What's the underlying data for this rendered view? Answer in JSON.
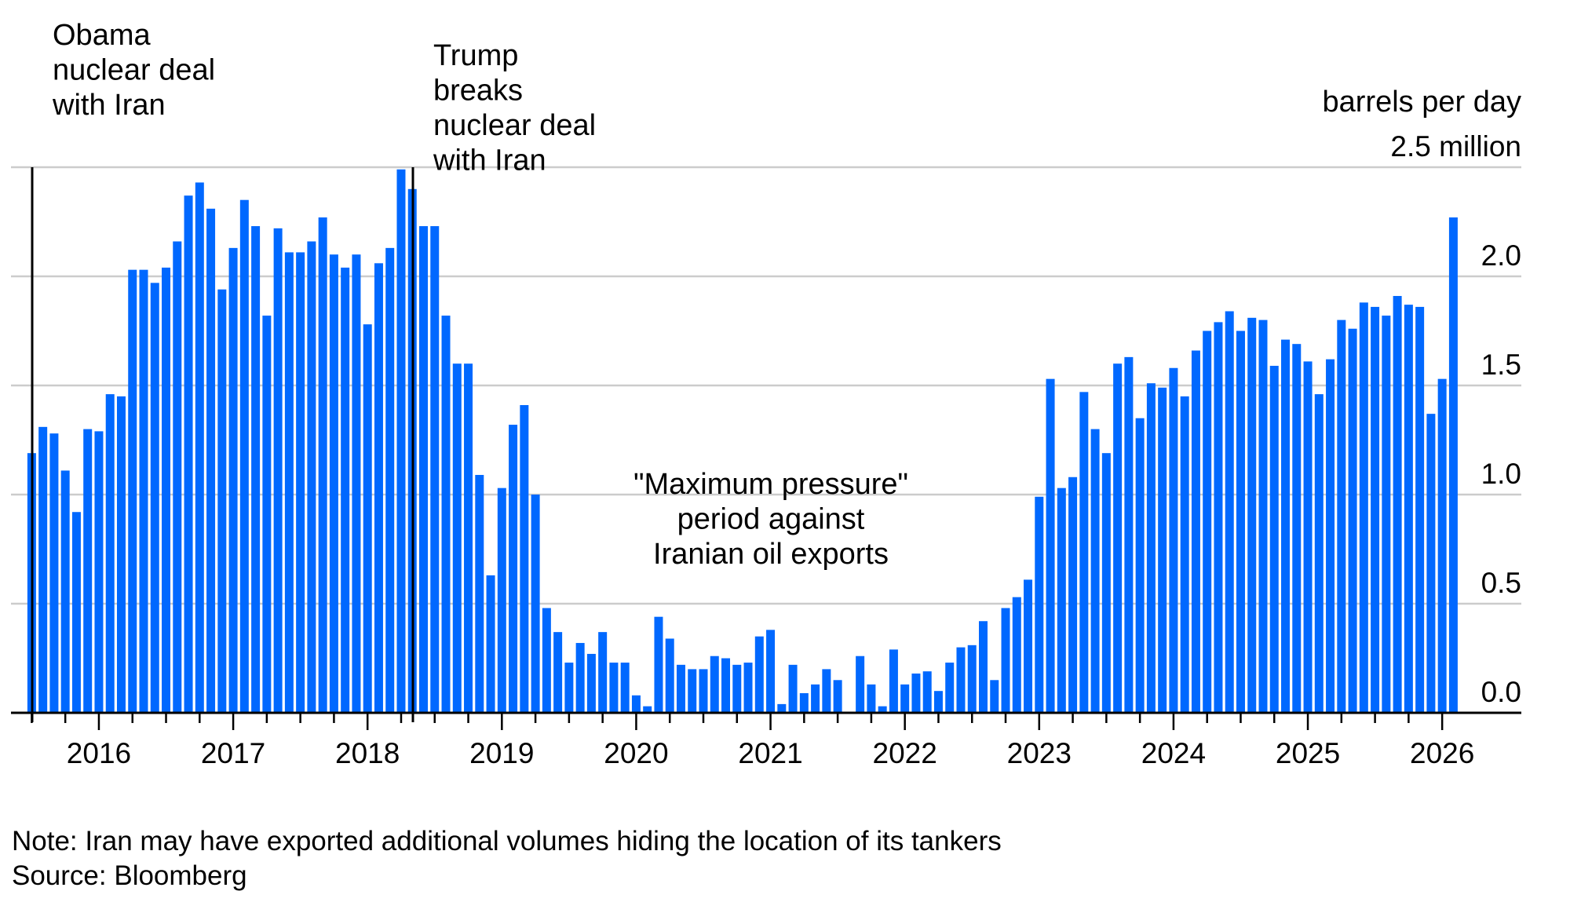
{
  "chart_data": {
    "type": "bar",
    "title": "",
    "unit_label_line1": "barrels per day",
    "unit_label_line2": "2.5 million",
    "xlabel": "",
    "ylabel": "barrels per day (million)",
    "ylim": [
      0,
      2.5
    ],
    "yticks": [
      0.0,
      0.5,
      1.0,
      1.5,
      2.0,
      2.5
    ],
    "ytick_labels": [
      "0.0",
      "0.5",
      "1.0",
      "1.5",
      "2.0",
      "2.5 million"
    ],
    "grid": true,
    "y_axis_side": "right",
    "bar_color": "#0068FF",
    "start_month": "2015-07",
    "end_month": "2026-02",
    "frequency": "monthly",
    "xtick_labels": [
      "2016",
      "2017",
      "2018",
      "2019",
      "2020",
      "2021",
      "2022",
      "2023",
      "2024",
      "2025",
      "2026"
    ],
    "values": [
      1.19,
      1.31,
      1.28,
      1.11,
      0.92,
      1.3,
      1.29,
      1.46,
      1.45,
      2.03,
      2.03,
      1.97,
      2.04,
      2.16,
      2.37,
      2.43,
      2.31,
      1.94,
      2.13,
      2.35,
      2.23,
      1.82,
      2.22,
      2.11,
      2.11,
      2.16,
      2.27,
      2.1,
      2.04,
      2.1,
      1.78,
      2.06,
      2.13,
      2.49,
      2.4,
      2.23,
      2.23,
      1.82,
      1.6,
      1.6,
      1.09,
      0.63,
      1.03,
      1.32,
      1.41,
      1.0,
      0.48,
      0.37,
      0.23,
      0.32,
      0.27,
      0.37,
      0.23,
      0.23,
      0.08,
      0.03,
      0.44,
      0.34,
      0.22,
      0.2,
      0.2,
      0.26,
      0.25,
      0.22,
      0.23,
      0.35,
      0.38,
      0.04,
      0.22,
      0.09,
      0.13,
      0.2,
      0.15,
      0.0,
      0.26,
      0.13,
      0.03,
      0.29,
      0.13,
      0.18,
      0.19,
      0.1,
      0.23,
      0.3,
      0.31,
      0.42,
      0.15,
      0.48,
      0.53,
      0.61,
      0.99,
      1.53,
      1.03,
      1.08,
      1.47,
      1.3,
      1.19,
      1.6,
      1.63,
      1.35,
      1.51,
      1.49,
      1.58,
      1.45,
      1.66,
      1.75,
      1.79,
      1.84,
      1.75,
      1.81,
      1.8,
      1.59,
      1.71,
      1.69,
      1.61,
      1.46,
      1.62,
      1.8,
      1.76,
      1.88,
      1.86,
      1.82,
      1.91,
      1.87,
      1.86,
      1.37,
      1.53,
      2.27
    ],
    "annotations": [
      {
        "name": "obama-deal",
        "month": "2015-07",
        "lines": [
          "Obama",
          "nuclear deal",
          "with Iran"
        ]
      },
      {
        "name": "trump-breaks-deal",
        "month": "2018-05",
        "lines": [
          "Trump",
          "breaks",
          "nuclear deal",
          "with Iran"
        ]
      },
      {
        "name": "maximum-pressure",
        "lines": [
          "\"Maximum pressure\"",
          "period against",
          "Iranian oil exports"
        ]
      }
    ]
  },
  "footer": {
    "note": "Note: Iran may have exported additional volumes hiding the location of its tankers",
    "source": "Source: Bloomberg"
  }
}
